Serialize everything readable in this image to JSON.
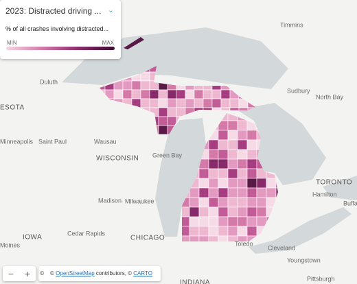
{
  "legend": {
    "title": "2023: Distracted driving ...",
    "subtitle": "% of all crashes involving distracted...",
    "min_label": "MIN",
    "max_label": "MAX"
  },
  "map_labels": [
    "Timmins",
    "North Bay",
    "Sudbury",
    "Duluth",
    "ESOTA",
    "Minneapolis",
    "Saint Paul",
    "Wausau",
    "WISCONSIN",
    "Green Bay",
    "Madison",
    "Milwaukee",
    "TORONTO",
    "Hamilton",
    "Buffal",
    "CHICAGO",
    "Cedar Rapids",
    "IOWA",
    "Moines",
    "Toledo",
    "Cleveland",
    "Youngstown",
    "Pittsburgh",
    "INDIANA"
  ],
  "controls": {
    "zoom_out": "−",
    "zoom_in": "+",
    "info": "©"
  },
  "attribution": {
    "prefix": "©",
    "link1": "OpenStreetMap",
    "middle": "contributors, ©",
    "link2": "CARTO"
  }
}
